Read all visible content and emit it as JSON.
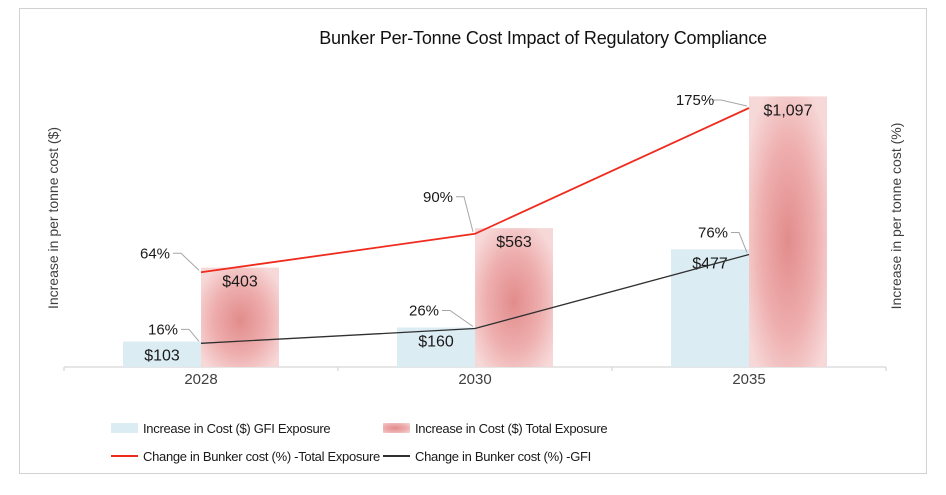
{
  "chart": {
    "title": "Bunker Per-Tonne Cost Impact of Regulatory Compliance",
    "left_axis_title": "Increase in per tonne cost ($)",
    "right_axis_title": "Increase in per tonne cost (%)"
  },
  "colors": {
    "card_border": "#d2d2d2",
    "axis_line": "#d6d6d6",
    "leader_line": "#a6a6a6",
    "text_dark": "#1a1a1a",
    "text_axis": "#404040"
  },
  "chart_data": {
    "type": "combo",
    "title": "Bunker Per-Tonne Cost Impact of Regulatory Compliance",
    "categories": [
      "2028",
      "2030",
      "2035"
    ],
    "series": [
      {
        "name": "Increase in Cost ($) GFI Exposure",
        "type": "bar",
        "axis": "left",
        "values": [
          103,
          160,
          477
        ],
        "labels": [
          "$103",
          "$160",
          "$477"
        ],
        "color": "#dbecf3"
      },
      {
        "name": "Increase in Cost ($) Total Exposure",
        "type": "bar",
        "axis": "left",
        "values": [
          403,
          563,
          1097
        ],
        "labels": [
          "$403",
          "$563",
          "$1,097"
        ],
        "color_center": "#e28c8c",
        "color_mid": "#eeadad",
        "color_edge": "#f7d8d8"
      },
      {
        "name": "Change in Bunker cost (%) -Total Exposure",
        "type": "line",
        "axis": "right",
        "values": [
          64,
          90,
          175
        ],
        "labels": [
          "64%",
          "90%",
          "175%"
        ],
        "color": "#ef2b1e"
      },
      {
        "name": "Change in Bunker cost (%) -GFI",
        "type": "line",
        "axis": "right",
        "values": [
          16,
          26,
          76
        ],
        "labels": [
          "16%",
          "26%",
          "76%"
        ],
        "color": "#303030"
      }
    ],
    "xlabel": "",
    "ylabel_left": "Increase in per tonne cost ($)",
    "ylabel_right": "Increase in per tonne cost (%)",
    "ylim_left": [
      0,
      1200
    ],
    "ylim_right": [
      0,
      200
    ],
    "gridlines": false,
    "legend_position": "bottom"
  }
}
